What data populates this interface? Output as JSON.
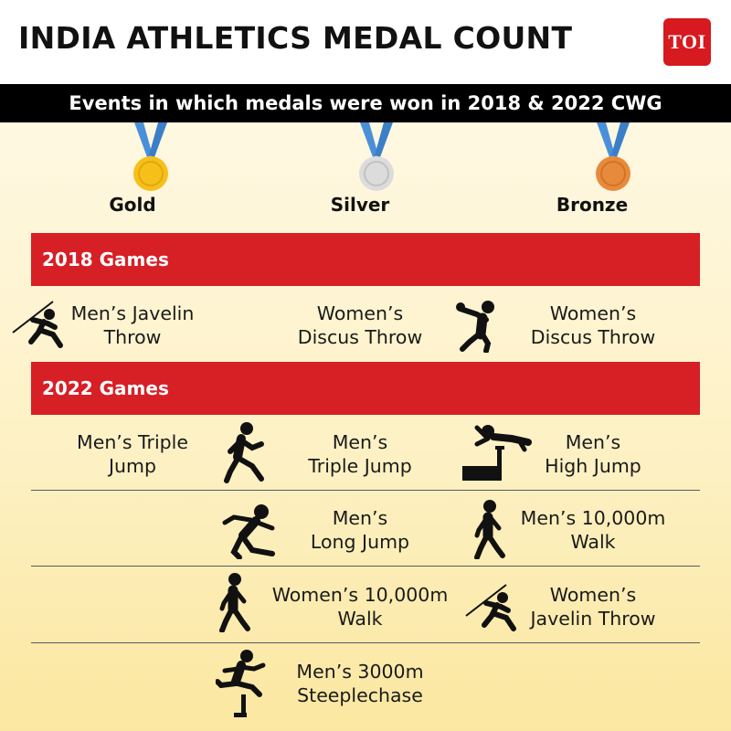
{
  "header": {
    "title": "INDIA ATHLETICS MEDAL COUNT",
    "logo": "TOI",
    "subtitle": "Events in which medals were won in 2018 & 2022 CWG"
  },
  "medals": {
    "gold": "Gold",
    "silver": "Silver",
    "bronze": "Bronze"
  },
  "colors": {
    "gold": "#f6bf1a",
    "silver": "#dcdcdc",
    "bronze": "#e88a3c",
    "ribbon": "#4a90d9",
    "band": "#d71f26",
    "logo": "#d71920"
  },
  "games_2018": {
    "label": "2018 Games",
    "gold": {
      "line1": "Men’s Javelin",
      "line2": "Throw",
      "icon": "javelin-thrower-icon"
    },
    "silver": {
      "line1": "Women’s",
      "line2": "Discus Throw"
    },
    "bronze": {
      "line1": "Women’s",
      "line2": "Discus Throw",
      "icon": "discus-thrower-icon"
    }
  },
  "games_2022": {
    "label": "2022 Games",
    "rows": [
      {
        "gold": {
          "line1": "Men’s Triple",
          "line2": "Jump"
        },
        "silver": {
          "line1": "Men’s",
          "line2": "Triple Jump",
          "icon": "triple-jumper-icon"
        },
        "bronze": {
          "line1": "Men’s",
          "line2": "High Jump",
          "icon": "high-jumper-icon"
        }
      },
      {
        "silver": {
          "line1": "Men’s",
          "line2": "Long Jump",
          "icon": "long-jumper-icon"
        },
        "bronze": {
          "line1": "Men’s 10,000m",
          "line2": "Walk",
          "icon": "race-walker-icon"
        }
      },
      {
        "silver": {
          "line1": "Women’s 10,000m",
          "line2": "Walk",
          "icon": "race-walker-icon"
        },
        "bronze": {
          "line1": "Women’s",
          "line2": "Javelin Throw",
          "icon": "javelin-thrower-icon"
        }
      },
      {
        "silver": {
          "line1": "Men’s 3000m",
          "line2": "Steeplechase",
          "icon": "steeplechase-runner-icon"
        }
      }
    ]
  }
}
